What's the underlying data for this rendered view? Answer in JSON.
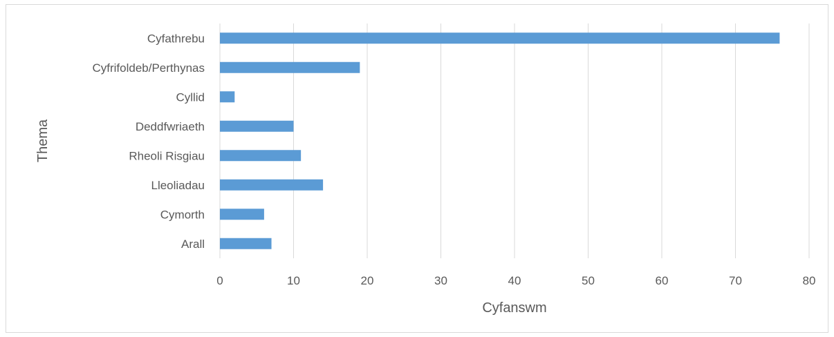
{
  "chart_data": {
    "type": "bar",
    "orientation": "horizontal",
    "categories": [
      "Cyfathrebu",
      "Cyfrifoldeb/Perthynas",
      "Cyllid",
      "Deddfwriaeth",
      "Rheoli Risgiau",
      "Lleoliadau",
      "Cymorth",
      "Arall"
    ],
    "values": [
      76,
      19,
      2,
      10,
      11,
      14,
      6,
      7
    ],
    "xlabel": "Cyfanswm",
    "ylabel": "Thema",
    "xlim": [
      0,
      80
    ],
    "xticks": [
      "0",
      "10",
      "20",
      "30",
      "40",
      "50",
      "60",
      "70",
      "80"
    ],
    "grid": true,
    "legend": "none",
    "bar_color": "#5b9bd5"
  }
}
